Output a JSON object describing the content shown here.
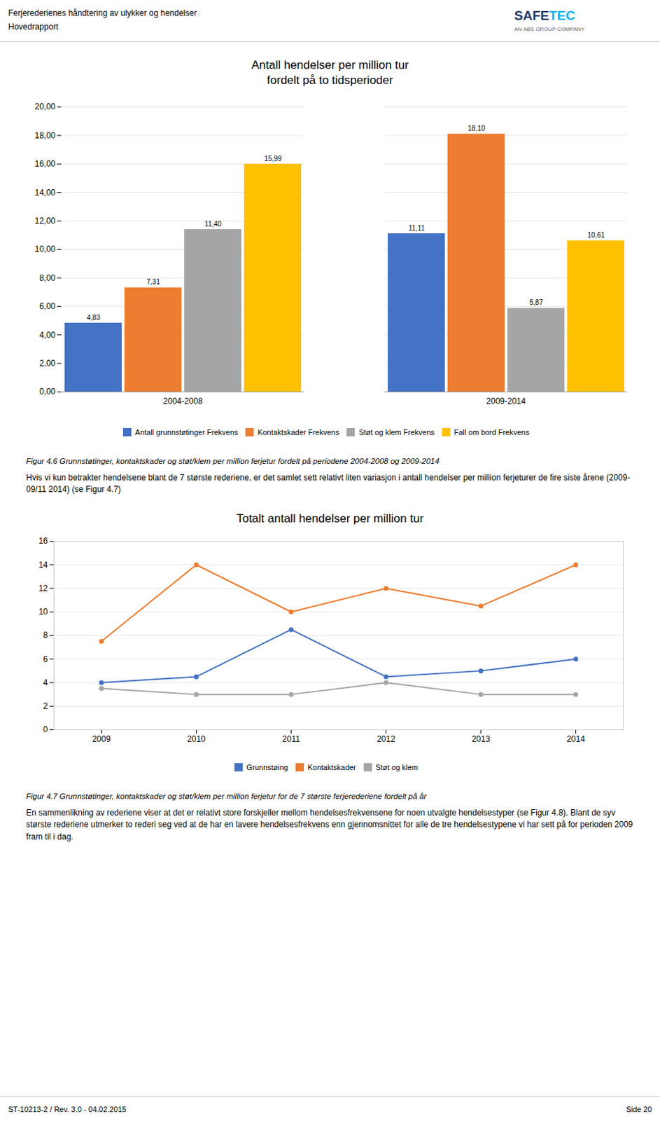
{
  "chart_data": [
    {
      "type": "bar",
      "title": "Antall hendelser per million tur",
      "subtitle": "fordelt på to tidsperioder",
      "categories": [
        "2004-2008",
        "2009-2014"
      ],
      "series": [
        {
          "name": "Antall grunnstøtinger Frekvens",
          "color": "#4472C4",
          "values": [
            4.83,
            11.11
          ],
          "value_labels": [
            "4,83",
            "11,11"
          ]
        },
        {
          "name": "Kontaktskader Frekvens",
          "color": "#ED7D31",
          "values": [
            7.31,
            18.1
          ],
          "value_labels": [
            "7,31",
            "18,10"
          ]
        },
        {
          "name": "Støt og klem Frekvens",
          "color": "#A5A5A5",
          "values": [
            11.4,
            5.87
          ],
          "value_labels": [
            "11,40",
            "5,87"
          ]
        },
        {
          "name": "Fall om bord Frekvens",
          "color": "#FFC000",
          "values": [
            15.99,
            10.61
          ],
          "value_labels": [
            "15,99",
            "10,61"
          ]
        }
      ],
      "ylim": [
        0,
        20
      ],
      "yticks": [
        {
          "value": 0,
          "label": "0,00"
        },
        {
          "value": 2,
          "label": "2,00"
        },
        {
          "value": 4,
          "label": "4,00"
        },
        {
          "value": 6,
          "label": "6,00"
        },
        {
          "value": 8,
          "label": "8,00"
        },
        {
          "value": 10,
          "label": "10,00"
        },
        {
          "value": 12,
          "label": "12,00"
        },
        {
          "value": 14,
          "label": "14,00"
        },
        {
          "value": 16,
          "label": "16,00"
        },
        {
          "value": 18,
          "label": "18,00"
        },
        {
          "value": 20,
          "label": "20,00"
        }
      ],
      "grid": true,
      "legend": "bottom",
      "data_labels": true,
      "annotations": [
        "Ferjerederienes håndtering av ulykker og hendelser",
        "Hovedrapport",
        "SAFE",
        "TEC",
        "AN ABS GROUP COMPANY",
        "Figur 4.6   Grunnstøtinger, kontaktskader og støt/klem per million ferjetur fordelt på periodene 2004-2008 og 2009-2014",
        "Hvis vi kun betrakter hendelsene blant de 7 største rederiene, er det samlet sett relativt liten variasjon i antall hendelser per million ferjeturer de fire siste årene (2009-09/11 2014) (se Figur 4.7)"
      ]
    },
    {
      "type": "line",
      "title": "Totalt antall hendelser per million tur",
      "x": [
        2009,
        2010,
        2011,
        2012,
        2013,
        2014
      ],
      "series": [
        {
          "name": "Grunnstøing",
          "color": "#4472C4",
          "marker": "circle",
          "values": [
            4.0,
            4.5,
            8.5,
            4.5,
            5.0,
            6.0
          ]
        },
        {
          "name": "Kontaktskader",
          "color": "#ED7D31",
          "marker": "circle",
          "values": [
            7.5,
            14.0,
            10.0,
            12.0,
            10.5,
            14.0
          ]
        },
        {
          "name": "Støt og klem",
          "color": "#A5A5A5",
          "marker": "circle",
          "values": [
            3.5,
            3.0,
            3.0,
            4.0,
            3.0,
            3.0
          ]
        }
      ],
      "xlim": [
        2008.5,
        2014.5
      ],
      "xticks": [
        2009,
        2010,
        2011,
        2012,
        2013,
        2014
      ],
      "ylim": [
        0,
        16
      ],
      "yticks": [
        0,
        2,
        4,
        6,
        8,
        10,
        12,
        14,
        16
      ],
      "grid": true,
      "legend": "bottom",
      "annotations": [
        "Figur 4.7   Grunnstøtinger, kontaktskader og støt/klem per million ferjetur for de 7 største ferjerederiene fordelt på år",
        "En sammenlikning av rederiene viser at det er relativt store forskjeller mellom hendelsesfrekvensene for noen utvalgte hendelsestyper (se Figur 4.8). Blant de syv største rederiene utmerker to rederi seg ved at de har en lavere hendelsesfrekvens enn gjennomsnittet for alle de tre hendelsestypene vi har sett på for perioden 2009 fram til i dag.",
        "ST-10213-2 / Rev. 3.0 - 04.02.2015",
        "Side 20"
      ]
    }
  ]
}
